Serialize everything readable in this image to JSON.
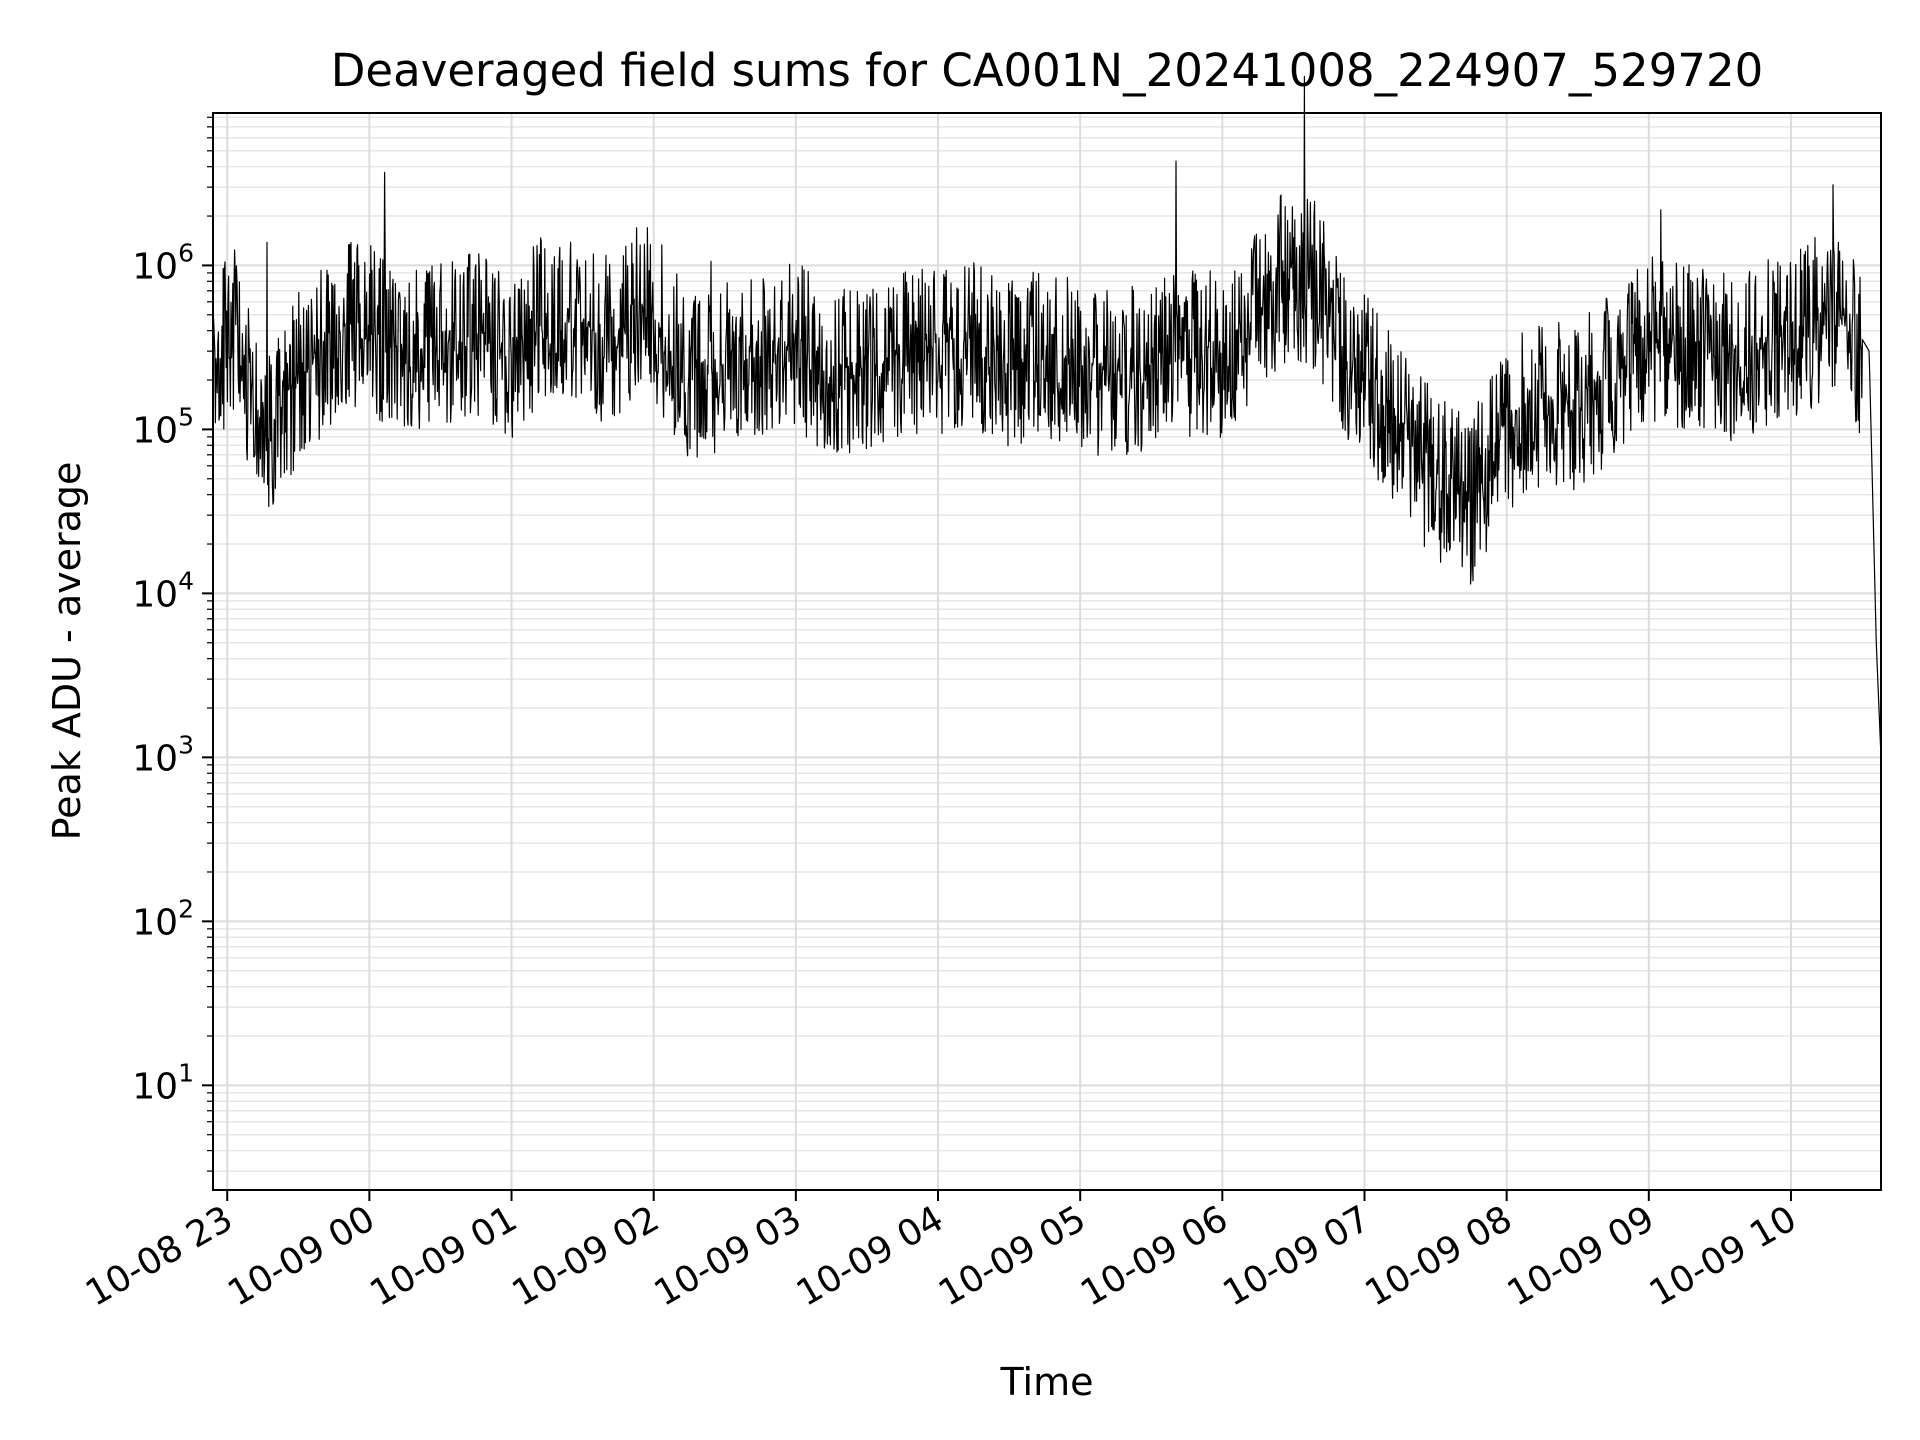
{
  "chart_data": {
    "type": "line",
    "title": "Deaveraged field sums for CA001N_20241008_224907_529720",
    "xlabel": "Time",
    "ylabel": "Peak ADU - average",
    "yscale": "log",
    "ylim": [
      2.3,
      8500000
    ],
    "xlim": [
      "2024-10-08 22:54",
      "2024-10-09 10:38"
    ],
    "grid": true,
    "line_color": "#000000",
    "x_ticks": [
      {
        "value": "2024-10-08 23:00",
        "label": "10-08 23"
      },
      {
        "value": "2024-10-09 00:00",
        "label": "10-09 00"
      },
      {
        "value": "2024-10-09 01:00",
        "label": "10-09 01"
      },
      {
        "value": "2024-10-09 02:00",
        "label": "10-09 02"
      },
      {
        "value": "2024-10-09 03:00",
        "label": "10-09 03"
      },
      {
        "value": "2024-10-09 04:00",
        "label": "10-09 04"
      },
      {
        "value": "2024-10-09 05:00",
        "label": "10-09 05"
      },
      {
        "value": "2024-10-09 06:00",
        "label": "10-09 06"
      },
      {
        "value": "2024-10-09 07:00",
        "label": "10-09 07"
      },
      {
        "value": "2024-10-09 08:00",
        "label": "10-09 08"
      },
      {
        "value": "2024-10-09 09:00",
        "label": "10-09 09"
      },
      {
        "value": "2024-10-09 10:00",
        "label": "10-09 10"
      }
    ],
    "y_ticks": [
      {
        "value": 10,
        "base": "10",
        "exp": "1"
      },
      {
        "value": 100,
        "base": "10",
        "exp": "2"
      },
      {
        "value": 1000,
        "base": "10",
        "exp": "3"
      },
      {
        "value": 10000,
        "base": "10",
        "exp": "4"
      },
      {
        "value": 100000,
        "base": "10",
        "exp": "5"
      },
      {
        "value": 1000000,
        "base": "10",
        "exp": "6"
      }
    ],
    "series": [
      {
        "x": [
          "2024-10-08 22:54",
          "2024-10-08 23:00",
          "2024-10-08 23:05",
          "2024-10-08 23:10",
          "2024-10-08 23:15",
          "2024-10-08 23:20",
          "2024-10-08 23:25",
          "2024-10-08 23:30",
          "2024-10-08 23:40",
          "2024-10-08 23:50",
          "2024-10-09 00:00",
          "2024-10-09 00:15",
          "2024-10-09 00:30",
          "2024-10-09 00:45",
          "2024-10-09 01:00",
          "2024-10-09 01:15",
          "2024-10-09 01:30",
          "2024-10-09 01:45",
          "2024-10-09 01:55",
          "2024-10-09 02:15",
          "2024-10-09 02:30",
          "2024-10-09 02:45",
          "2024-10-09 03:00",
          "2024-10-09 03:15",
          "2024-10-09 03:30",
          "2024-10-09 03:45",
          "2024-10-09 04:00",
          "2024-10-09 04:15",
          "2024-10-09 04:30",
          "2024-10-09 04:45",
          "2024-10-09 05:00",
          "2024-10-09 05:15",
          "2024-10-09 05:30",
          "2024-10-09 05:45",
          "2024-10-09 06:00",
          "2024-10-09 06:15",
          "2024-10-09 06:25",
          "2024-10-09 06:40",
          "2024-10-09 06:50",
          "2024-10-09 07:00",
          "2024-10-09 07:15",
          "2024-10-09 07:30",
          "2024-10-09 07:45",
          "2024-10-09 08:00",
          "2024-10-09 08:15",
          "2024-10-09 08:30",
          "2024-10-09 08:45",
          "2024-10-09 09:00",
          "2024-10-09 09:15",
          "2024-10-09 09:30",
          "2024-10-09 09:45",
          "2024-10-09 10:00",
          "2024-10-09 10:10",
          "2024-10-09 10:20",
          "2024-10-09 10:28",
          "2024-10-09 10:33",
          "2024-10-09 10:36",
          "2024-10-09 10:38"
        ],
        "values": [
          450000,
          380000,
          550000,
          180000,
          150000,
          120000,
          170000,
          250000,
          350000,
          550000,
          500000,
          350000,
          400000,
          450000,
          350000,
          600000,
          500000,
          400000,
          800000,
          250000,
          300000,
          350000,
          400000,
          250000,
          300000,
          350000,
          350000,
          400000,
          300000,
          350000,
          300000,
          250000,
          300000,
          350000,
          350000,
          600000,
          1000000,
          900000,
          350000,
          250000,
          120000,
          60000,
          45000,
          120000,
          180000,
          160000,
          260000,
          420000,
          380000,
          320000,
          380000,
          450000,
          550000,
          650000,
          400000,
          300000,
          5000,
          1000
        ]
      }
    ]
  }
}
